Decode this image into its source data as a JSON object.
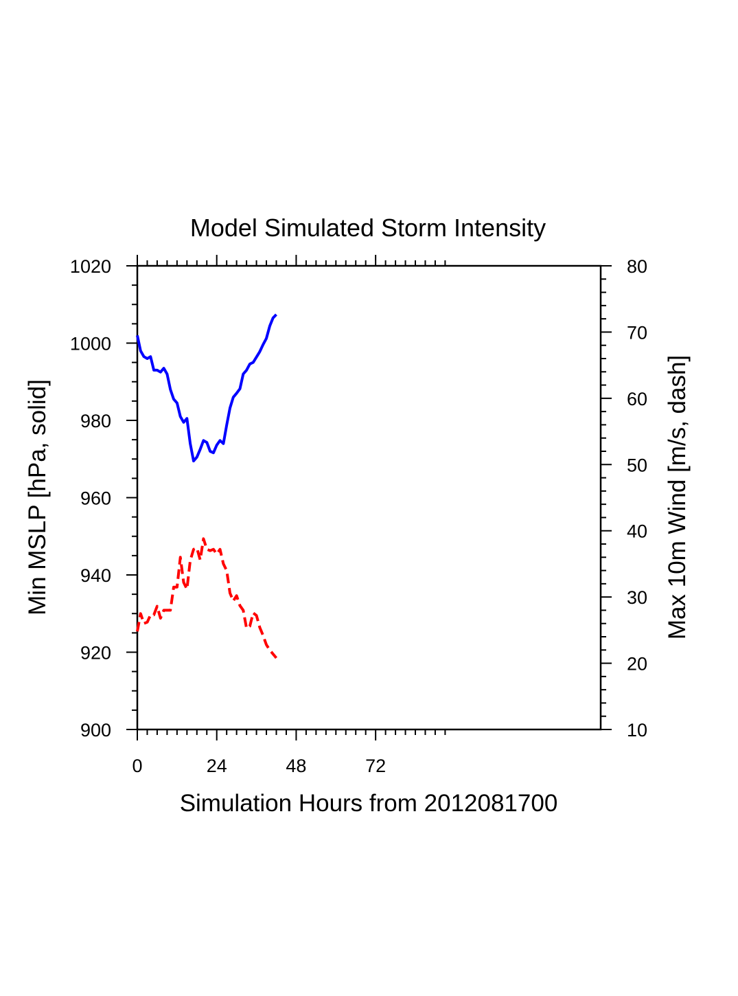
{
  "chart_data": {
    "type": "line",
    "title": "Model Simulated Storm Intensity",
    "xlabel": "Simulation Hours from 2012081700",
    "ylabel_left": "Min MSLP  [hPa, solid]",
    "ylabel_right": "Max 10m Wind  [m/s, dash]",
    "xlim": [
      0,
      140
    ],
    "x_ticks": [
      0,
      24,
      48,
      72
    ],
    "ylim_left": [
      900,
      1020
    ],
    "y_ticks_left": [
      900,
      920,
      940,
      960,
      980,
      1000,
      1020
    ],
    "ylim_right": [
      10,
      80
    ],
    "y_ticks_right": [
      10,
      20,
      30,
      40,
      50,
      60,
      70,
      80
    ],
    "series": [
      {
        "name": "Min MSLP",
        "axis": "left",
        "color": "#0000ff",
        "style": "solid",
        "x": [
          0,
          1,
          2,
          3,
          4,
          5,
          6,
          7,
          8,
          9,
          10,
          11,
          12,
          13,
          14,
          15,
          16,
          17,
          18,
          19,
          20,
          21,
          22,
          23,
          24,
          25,
          26,
          27,
          28,
          29,
          30,
          31,
          32,
          33,
          34,
          35,
          36,
          37,
          38,
          39,
          40,
          41,
          42
        ],
        "y": [
          1002,
          998,
          996.5,
          996,
          996.5,
          993,
          993,
          992.5,
          993.5,
          992,
          988,
          985.5,
          984.5,
          981,
          979.5,
          980.5,
          974,
          969.5,
          970.5,
          972.5,
          974.8,
          974.3,
          972,
          971.6,
          973.6,
          974.8,
          974,
          978.8,
          983.2,
          986,
          987,
          988.2,
          992,
          993,
          994.6,
          995,
          996.4,
          997.8,
          999.6,
          1001.2,
          1004.4,
          1006.5,
          1007.4
        ]
      },
      {
        "name": "Max 10m Wind",
        "axis": "right",
        "color": "#ff0000",
        "style": "dash",
        "x": [
          0,
          1,
          2,
          3,
          4,
          5,
          6,
          7,
          8,
          9,
          10,
          11,
          12,
          13,
          14,
          15,
          16,
          17,
          18,
          19,
          20,
          21,
          22,
          23,
          24,
          25,
          26,
          27,
          28,
          29,
          30,
          31,
          32,
          33,
          34,
          35,
          36,
          37,
          38,
          39,
          40,
          41,
          42
        ],
        "y": [
          24.8,
          27.5,
          26,
          26.2,
          27.3,
          27.3,
          28.6,
          26.8,
          28,
          28,
          28,
          31.5,
          31.5,
          36,
          32.2,
          31.2,
          35.5,
          37.2,
          37.4,
          35.6,
          38.8,
          37.2,
          37,
          37.2,
          36.5,
          37.2,
          35,
          34,
          30.6,
          29.4,
          30.2,
          28.7,
          28,
          25.3,
          25.6,
          27.6,
          27.2,
          25.4,
          24.2,
          22.8,
          22,
          21.4,
          20.8
        ]
      }
    ]
  }
}
